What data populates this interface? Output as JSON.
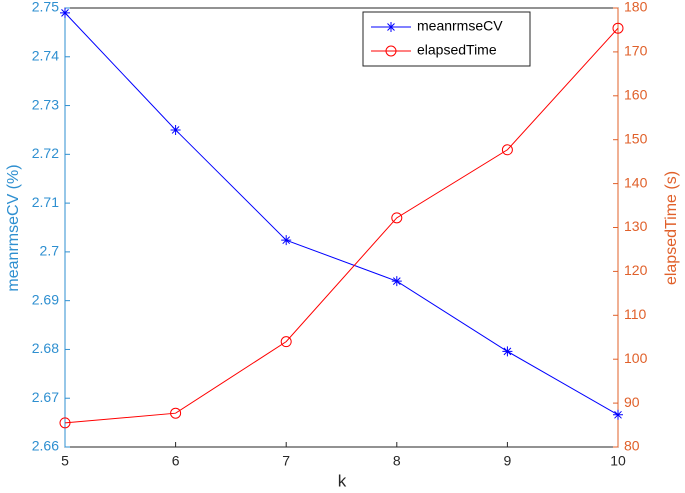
{
  "chart_data": {
    "type": "line",
    "x_label": "k",
    "y_label": "meanrmseCV (%)",
    "y2_label": "elapsedTime (s)",
    "x": [
      5,
      6,
      7,
      8,
      9,
      10
    ],
    "series": [
      {
        "name": "meanrmseCV",
        "color": "#0000ff",
        "marker": "asterisk",
        "axis": "y",
        "values": [
          2.749,
          2.725,
          2.7024,
          2.694,
          2.6796,
          2.6666
        ]
      },
      {
        "name": "elapsedTime",
        "color": "#ff0000",
        "marker": "circle",
        "axis": "y2",
        "values": [
          85.5,
          87.7,
          104,
          132.2,
          147.7,
          175.4
        ]
      }
    ],
    "xlim": [
      5,
      10
    ],
    "xticks": [
      5,
      6,
      7,
      8,
      9,
      10
    ],
    "ylim": [
      2.66,
      2.75
    ],
    "yticks": [
      2.66,
      2.67,
      2.68,
      2.69,
      2.7,
      2.71,
      2.72,
      2.73,
      2.74,
      2.75
    ],
    "y2lim": [
      80,
      180
    ],
    "y2ticks": [
      80,
      90,
      100,
      110,
      120,
      130,
      140,
      150,
      160,
      170,
      180
    ],
    "y_color": "#2e8fd0",
    "y2_color": "#e0602a",
    "legend": "north-east",
    "grid": false
  }
}
